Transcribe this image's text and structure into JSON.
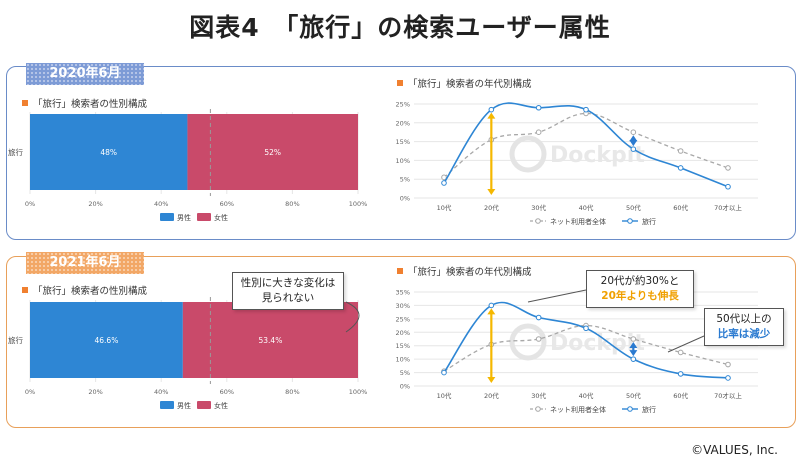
{
  "title": "図表4　「旅行」の検索ユーザー属性",
  "copyright": "©VALUES, Inc.",
  "watermark": "Dockpit",
  "colors": {
    "male": "#2e86d4",
    "female": "#c94a6a",
    "travel": "#2e86d4",
    "internet": "#a8a8a8",
    "arrow_yellow": "#f5b800",
    "arrow_blue": "#2a7ad0"
  },
  "panels": [
    {
      "year_label": "2020年6月",
      "gender_title": "「旅行」検索者の性別構成",
      "age_title": "「旅行」検索者の年代別構成"
    },
    {
      "year_label": "2021年6月",
      "gender_title": "「旅行」検索者の性別構成",
      "age_title": "「旅行」検索者の年代別構成",
      "callout_gender": {
        "line1": "性別に大きな変化は",
        "line2": "見られない"
      },
      "callout_20s": {
        "line1": "20代が約30%と",
        "line2": "20年よりも伸長"
      },
      "callout_50s": {
        "line1": "50代以上の",
        "line2": "比率は減少"
      }
    }
  ],
  "chart_data": [
    {
      "type": "bar",
      "orientation": "horizontal-stacked",
      "title": "「旅行」検索者の性別構成",
      "categories": [
        "旅行"
      ],
      "series": [
        {
          "name": "男性",
          "values": [
            48
          ]
        },
        {
          "name": "女性",
          "values": [
            52
          ]
        }
      ],
      "data_labels": [
        "48%",
        "52%"
      ],
      "xlim": [
        0,
        100
      ],
      "x_ticks": [
        "0%",
        "20%",
        "40%",
        "60%",
        "80%",
        "100%"
      ],
      "reference_line_x": 55,
      "legend": [
        "男性",
        "女性"
      ],
      "legend_position": "bottom"
    },
    {
      "type": "line",
      "title": "「旅行」検索者の年代別構成",
      "categories": [
        "10代",
        "20代",
        "30代",
        "40代",
        "50代",
        "60代",
        "70才以上"
      ],
      "series": [
        {
          "name": "ネット利用者全体",
          "style": "dashed",
          "values": [
            5.5,
            15.5,
            17.5,
            22.5,
            17.5,
            12.5,
            8
          ]
        },
        {
          "name": "旅行",
          "style": "solid",
          "values": [
            4,
            23.5,
            24,
            23.5,
            13,
            8,
            3
          ]
        }
      ],
      "ylim": [
        0,
        25
      ],
      "y_ticks": [
        "0%",
        "5%",
        "10%",
        "15%",
        "20%",
        "25%"
      ],
      "legend": [
        "ネット利用者全体",
        "旅行"
      ],
      "legend_position": "bottom"
    },
    {
      "type": "bar",
      "orientation": "horizontal-stacked",
      "title": "「旅行」検索者の性別構成",
      "categories": [
        "旅行"
      ],
      "series": [
        {
          "name": "男性",
          "values": [
            46.6
          ]
        },
        {
          "name": "女性",
          "values": [
            53.4
          ]
        }
      ],
      "data_labels": [
        "46.6%",
        "53.4%"
      ],
      "xlim": [
        0,
        100
      ],
      "x_ticks": [
        "0%",
        "20%",
        "40%",
        "60%",
        "80%",
        "100%"
      ],
      "reference_line_x": 55,
      "legend": [
        "男性",
        "女性"
      ],
      "legend_position": "bottom"
    },
    {
      "type": "line",
      "title": "「旅行」検索者の年代別構成",
      "categories": [
        "10代",
        "20代",
        "30代",
        "40代",
        "50代",
        "60代",
        "70才以上"
      ],
      "series": [
        {
          "name": "ネット利用者全体",
          "style": "dashed",
          "values": [
            5.5,
            15.5,
            17.5,
            22.5,
            17.5,
            12.5,
            8
          ]
        },
        {
          "name": "旅行",
          "style": "solid",
          "values": [
            5,
            30,
            25.5,
            21.5,
            10,
            4.5,
            3
          ]
        }
      ],
      "ylim": [
        0,
        35
      ],
      "y_ticks": [
        "0%",
        "5%",
        "10%",
        "15%",
        "20%",
        "25%",
        "30%",
        "35%"
      ],
      "legend": [
        "ネット利用者全体",
        "旅行"
      ],
      "legend_position": "bottom"
    }
  ]
}
